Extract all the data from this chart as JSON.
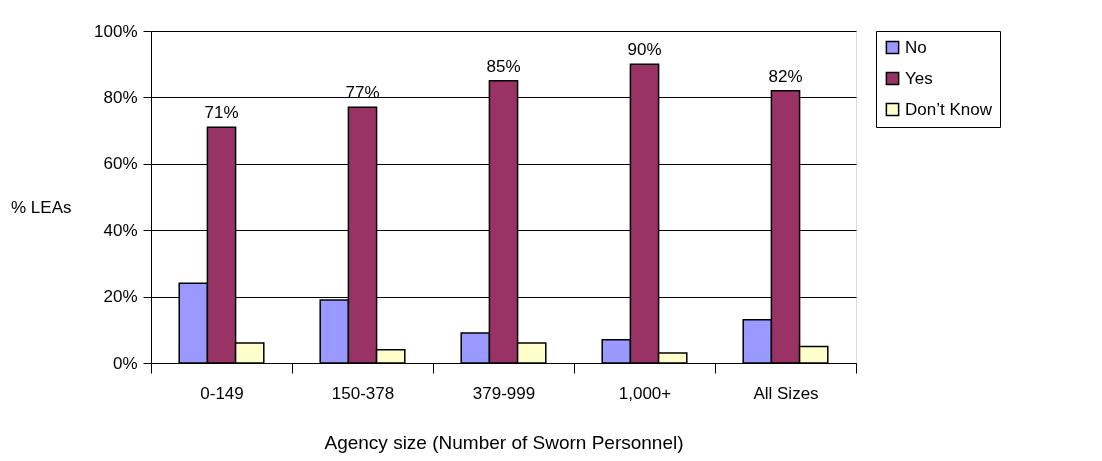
{
  "chart_data": {
    "type": "bar",
    "xlabel": "Agency size (Number of Sworn Personnel)",
    "ylabel": "% LEAs",
    "categories": [
      "0-149",
      "150-378",
      "379-999",
      "1,000+",
      "All Sizes"
    ],
    "series": [
      {
        "name": "No",
        "color": "#9999ff",
        "values": [
          24,
          19,
          9,
          7,
          13
        ]
      },
      {
        "name": "Yes",
        "color": "#993366",
        "values": [
          71,
          77,
          85,
          90,
          82
        ],
        "value_labels": [
          "71%",
          "77%",
          "85%",
          "90%",
          "82%"
        ]
      },
      {
        "name": "Don’t Know",
        "color": "#ffffcc",
        "values": [
          6,
          4,
          6,
          3,
          5
        ]
      }
    ],
    "ylim": [
      0,
      100
    ],
    "yticks": [
      {
        "value": 0,
        "label": "0%"
      },
      {
        "value": 20,
        "label": "20%"
      },
      {
        "value": 40,
        "label": "40%"
      },
      {
        "value": 60,
        "label": "60%"
      },
      {
        "value": 80,
        "label": "80%"
      },
      {
        "value": 100,
        "label": "100%"
      }
    ],
    "grid": "y",
    "legend": "right"
  }
}
